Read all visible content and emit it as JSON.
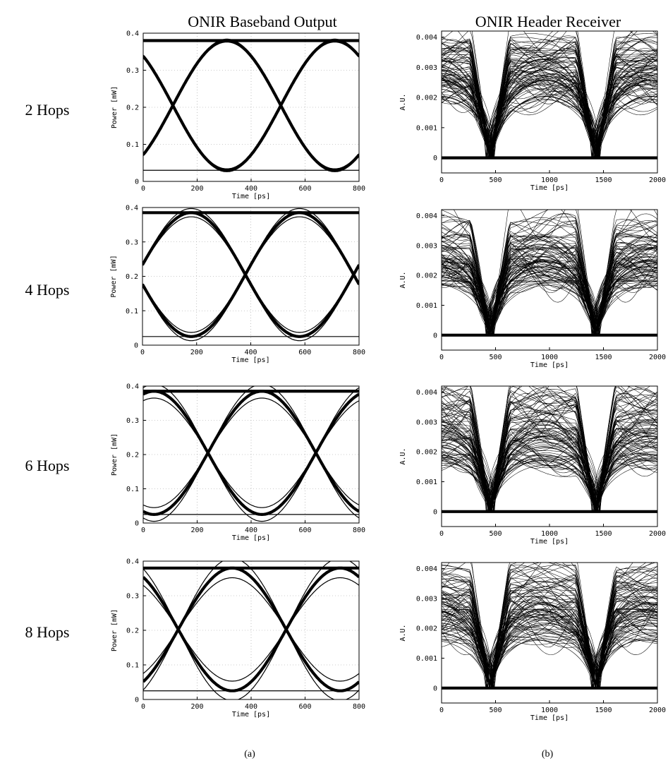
{
  "column_titles": [
    "ONIR Baseband Output",
    "ONIR Header Receiver"
  ],
  "row_labels": [
    "2 Hops",
    "4 Hops",
    "6 Hops",
    "8 Hops"
  ],
  "captions": [
    "(a)",
    "(b)"
  ],
  "chart_data": [
    {
      "id": "a-2",
      "type": "line",
      "xlabel": "Time  [ps]",
      "ylabel": "Power  [mW]",
      "xlim": [
        0,
        800
      ],
      "ylim": [
        0,
        0.4
      ],
      "xticks": [
        0,
        200,
        400,
        600,
        800
      ],
      "yticks": [
        0,
        0.1,
        0.2,
        0.3,
        0.4
      ],
      "ytick_labels": [
        "0",
        "0.1",
        "0.2",
        "0.3",
        "0.4"
      ],
      "grid": true,
      "eye": {
        "low": 0.03,
        "high": 0.38,
        "center": 310,
        "period": 400,
        "cross_level": 0.2,
        "spread": 0.004
      }
    },
    {
      "id": "a-4",
      "type": "line",
      "xlabel": "Time  [ps]",
      "ylabel": "Power  [mW]",
      "xlim": [
        0,
        800
      ],
      "ylim": [
        0,
        0.4
      ],
      "xticks": [
        0,
        200,
        400,
        600,
        800
      ],
      "yticks": [
        0,
        0.1,
        0.2,
        0.3,
        0.4
      ],
      "ytick_labels": [
        "0",
        "0.1",
        "0.2",
        "0.3",
        "0.4"
      ],
      "grid": true,
      "eye": {
        "low": 0.025,
        "high": 0.385,
        "center": 180,
        "period": 400,
        "cross_level": 0.2,
        "spread": 0.012
      }
    },
    {
      "id": "a-6",
      "type": "line",
      "xlabel": "Time  [ps]",
      "ylabel": "Power  [mW]",
      "xlim": [
        0,
        800
      ],
      "ylim": [
        0,
        0.4
      ],
      "xticks": [
        0,
        200,
        400,
        600,
        800
      ],
      "yticks": [
        0,
        0.1,
        0.2,
        0.3,
        0.4
      ],
      "ytick_labels": [
        "0",
        "0.1",
        "0.2",
        "0.3",
        "0.4"
      ],
      "grid": true,
      "eye": {
        "low": 0.025,
        "high": 0.385,
        "center": 440,
        "period": 400,
        "cross_level": 0.21,
        "spread": 0.02
      }
    },
    {
      "id": "a-8",
      "type": "line",
      "xlabel": "Time  [ps]",
      "ylabel": "Power  [mW]",
      "xlim": [
        0,
        800
      ],
      "ylim": [
        0,
        0.4
      ],
      "xticks": [
        0,
        200,
        400,
        600,
        800
      ],
      "yticks": [
        0,
        0.1,
        0.2,
        0.3,
        0.4
      ],
      "ytick_labels": [
        "0",
        "0.1",
        "0.2",
        "0.3",
        "0.4"
      ],
      "grid": true,
      "eye": {
        "low": 0.025,
        "high": 0.38,
        "center": 330,
        "period": 400,
        "cross_level": 0.21,
        "spread": 0.028
      }
    },
    {
      "id": "b-2",
      "type": "line",
      "xlabel": "Time  [ps]",
      "ylabel": "A.U.",
      "xlim": [
        0,
        2000
      ],
      "ylim": [
        -0.0005,
        0.0042
      ],
      "xticks": [
        0,
        500,
        1000,
        1500,
        2000
      ],
      "yticks": [
        0,
        0.001,
        0.002,
        0.003,
        0.004
      ],
      "ytick_labels": [
        "0",
        "0.001",
        "0.002",
        "0.003",
        "0.004"
      ],
      "grid": false,
      "eye": {
        "low": 0.0,
        "band": [
          0.0019,
          0.004
        ],
        "crossings": [
          450,
          1430
        ]
      }
    },
    {
      "id": "b-4",
      "type": "line",
      "xlabel": "Time  [ps]",
      "ylabel": "A.U.",
      "xlim": [
        0,
        2000
      ],
      "ylim": [
        -0.0005,
        0.0042
      ],
      "xticks": [
        0,
        500,
        1000,
        1500,
        2000
      ],
      "yticks": [
        0,
        0.001,
        0.002,
        0.003,
        0.004
      ],
      "ytick_labels": [
        "0",
        "0.001",
        "0.002",
        "0.003",
        "0.004"
      ],
      "grid": false,
      "eye": {
        "low": 0.0,
        "band": [
          0.0016,
          0.0039
        ],
        "crossings": [
          450,
          1430
        ]
      }
    },
    {
      "id": "b-6",
      "type": "line",
      "xlabel": "Time  [ps]",
      "ylabel": "A.U.",
      "xlim": [
        0,
        2000
      ],
      "ylim": [
        -0.0005,
        0.0042
      ],
      "xticks": [
        0,
        500,
        1000,
        1500,
        2000
      ],
      "yticks": [
        0,
        0.001,
        0.002,
        0.003,
        0.004
      ],
      "ytick_labels": [
        "0",
        "0.001",
        "0.002",
        "0.003",
        "0.004"
      ],
      "grid": false,
      "eye": {
        "low": 0.0,
        "band": [
          0.0015,
          0.004
        ],
        "crossings": [
          450,
          1430
        ]
      }
    },
    {
      "id": "b-8",
      "type": "line",
      "xlabel": "Time  [ps]",
      "ylabel": "A.U.",
      "xlim": [
        0,
        2000
      ],
      "ylim": [
        -0.0005,
        0.0042
      ],
      "xticks": [
        0,
        500,
        1000,
        1500,
        2000
      ],
      "yticks": [
        0,
        0.001,
        0.002,
        0.003,
        0.004
      ],
      "ytick_labels": [
        "0",
        "0.001",
        "0.002",
        "0.003",
        "0.004"
      ],
      "grid": false,
      "eye": {
        "low": 0.0,
        "band": [
          0.0015,
          0.0041
        ],
        "crossings": [
          450,
          1430
        ]
      }
    }
  ]
}
